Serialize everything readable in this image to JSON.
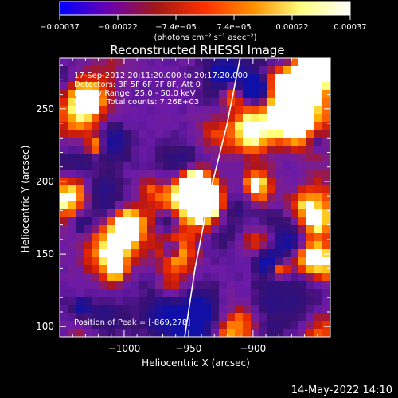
{
  "chart_data": {
    "type": "heatmap",
    "title": "Reconstructed RHESSI Image",
    "xlabel": "Heliocentric X (arcsec)",
    "ylabel": "Heliocentric Y (arcsec)",
    "xlim": [
      -1050,
      -840
    ],
    "ylim": [
      93,
      285
    ],
    "xticks": [
      -1000,
      -950,
      -900
    ],
    "yticks": [
      100,
      150,
      200,
      250
    ],
    "xtick_labels": [
      "−1000",
      "−950",
      "−900"
    ],
    "ytick_labels": [
      "100",
      "150",
      "200",
      "250"
    ],
    "colorbar": {
      "range": [
        -0.00037,
        0.00037
      ],
      "tick_labels": [
        "−0.00037",
        "−0.00022",
        "−7.4e−05",
        "7.4e−05",
        "0.00022",
        "0.00037"
      ],
      "unit_label": "(photons cm⁻² s⁻¹ asec⁻²)",
      "colors": [
        "#0000ff",
        "#6a00b0",
        "#a01818",
        "#ff3000",
        "#ff9000",
        "#ffff80",
        "#ffffff"
      ]
    },
    "annotations": [
      "17-Sep-2012 20:11:20.000 to 20:17:20.000",
      "Detectors: 3F 5F 6F 7F 8F, Att 0",
      "Energy Range: 25.0 - 50.0 keV",
      "Clean    Total counts: 7.26E+03"
    ],
    "peak_label": "Position of Peak = [-869,278]",
    "peak": [
      -869,
      278
    ],
    "limb_arc": [
      [
        -953,
        93
      ],
      [
        -945,
        140
      ],
      [
        -934,
        190
      ],
      [
        -920,
        240
      ],
      [
        -910,
        285
      ]
    ]
  },
  "footer": {
    "timestamp": "14-May-2022 14:10"
  }
}
